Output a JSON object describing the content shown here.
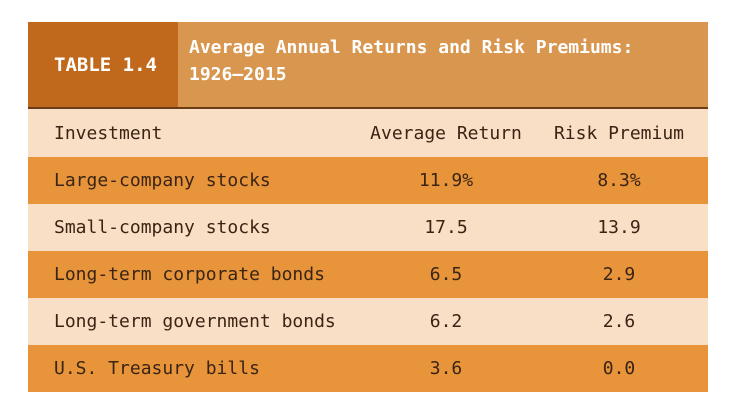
{
  "header": {
    "label": "TABLE 1.4",
    "title": "Average Annual Returns and Risk Premiums: 1926–2015"
  },
  "table": {
    "columns": [
      "Investment",
      "Average Return",
      "Risk Premium"
    ],
    "rows": [
      [
        "Large-company stocks",
        "11.9%",
        "8.3%"
      ],
      [
        "Small-company stocks",
        "17.5",
        "13.9"
      ],
      [
        "Long-term corporate bonds",
        "6.5",
        "2.9"
      ],
      [
        "Long-term government bonds",
        "6.2",
        "2.6"
      ],
      [
        "U.S. Treasury bills",
        "3.6",
        "0.0"
      ]
    ]
  }
}
